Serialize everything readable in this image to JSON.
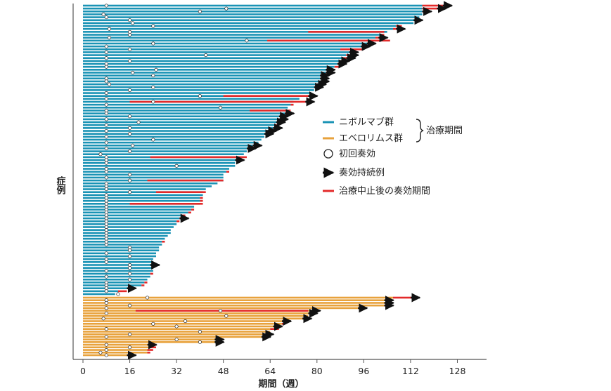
{
  "chart_data": {
    "type": "bar",
    "orientation": "horizontal",
    "description_style": "swimmer",
    "xlabel": "期間（週）",
    "ylabel": "症例",
    "xlim": [
      0,
      136
    ],
    "xticks": [
      0,
      16,
      32,
      48,
      64,
      80,
      96,
      112,
      128
    ],
    "grid": false,
    "legend_position": "right",
    "colors": {
      "nivolumab": "#1a93b5",
      "everolimus": "#e8a23c",
      "post_treatment": "#e32a2a",
      "ongoing_arrow": "#111111"
    },
    "legend": {
      "nivolumab": "ニボルマブ群",
      "everolimus": "エベロリムス群",
      "treatment_period": "治療期間",
      "first_response": "初回奏効",
      "ongoing": "奏効持続例",
      "post_treatment": "治療中止後の奏効期間"
    },
    "series": [
      {
        "name": "ニボルマブ群",
        "treatment_end": [
          116,
          116,
          116,
          116,
          115,
          114,
          113,
          107,
          106,
          104,
          102,
          100,
          100,
          98,
          96,
          94,
          92,
          90,
          89,
          88,
          87,
          86,
          84,
          83,
          82,
          82,
          82,
          81,
          80,
          79,
          78,
          76,
          74,
          72,
          71,
          70,
          70,
          69,
          68,
          68,
          67,
          66,
          65,
          64,
          63,
          62,
          61,
          60,
          58,
          57,
          56,
          55,
          54,
          53,
          52,
          52,
          50,
          49,
          48,
          48,
          48,
          46,
          44,
          42,
          41,
          41,
          40,
          40,
          40,
          38,
          37,
          36,
          34,
          33,
          32,
          32,
          31,
          30,
          30,
          29,
          28,
          27,
          27,
          26,
          26,
          25,
          25,
          24,
          24,
          24,
          24,
          24,
          23,
          23,
          22,
          21,
          20,
          16,
          12,
          11
        ],
        "response_end": [
          124,
          122,
          117,
          116,
          115,
          114,
          113,
          109,
          108,
          103,
          103,
          102,
          105,
          98,
          96,
          96,
          92,
          92,
          91,
          89,
          88,
          88,
          84,
          84,
          82,
          82,
          82,
          81,
          80,
          79,
          78,
          78,
          74,
          77,
          72,
          70,
          71,
          70,
          68,
          68,
          67,
          67,
          66,
          64,
          63,
          62,
          61,
          60,
          59,
          57,
          56,
          55,
          56,
          52,
          52,
          52,
          50,
          50,
          48,
          48,
          48,
          46,
          44,
          42,
          42,
          41,
          41,
          41,
          41,
          38,
          38,
          37,
          35,
          34,
          33,
          32,
          31,
          30,
          30,
          29,
          28,
          28,
          27,
          26,
          26,
          25,
          25,
          24,
          24,
          24,
          24,
          24,
          24,
          23,
          22,
          22,
          21,
          16,
          15,
          11
        ],
        "response_start": [
          116,
          116,
          116,
          116,
          115,
          114,
          113,
          107,
          106,
          77,
          102,
          100,
          63,
          98,
          96,
          88,
          92,
          90,
          89,
          88,
          87,
          86,
          84,
          83,
          82,
          82,
          82,
          81,
          80,
          79,
          78,
          48,
          74,
          16,
          71,
          70,
          57,
          69,
          68,
          68,
          67,
          66,
          65,
          64,
          63,
          62,
          61,
          60,
          58,
          57,
          56,
          55,
          23,
          53,
          52,
          52,
          50,
          49,
          48,
          48,
          22,
          46,
          44,
          42,
          25,
          41,
          40,
          40,
          16,
          38,
          37,
          36,
          34,
          33,
          32,
          32,
          31,
          30,
          30,
          29,
          28,
          27,
          27,
          26,
          26,
          25,
          25,
          24,
          24,
          24,
          24,
          24,
          23,
          23,
          22,
          21,
          20,
          16,
          12,
          11
        ],
        "ongoing": [
          1,
          1,
          1,
          0,
          0,
          1,
          0,
          0,
          1,
          0,
          0,
          1,
          0,
          1,
          1,
          0,
          1,
          1,
          1,
          1,
          1,
          0,
          1,
          1,
          1,
          1,
          1,
          1,
          1,
          0,
          0,
          1,
          0,
          1,
          0,
          0,
          0,
          1,
          1,
          1,
          1,
          0,
          1,
          1,
          1,
          0,
          0,
          0,
          1,
          1,
          0,
          0,
          0,
          1,
          0,
          0,
          0,
          0,
          0,
          0,
          0,
          0,
          0,
          0,
          0,
          0,
          0,
          0,
          0,
          0,
          0,
          0,
          0,
          1,
          0,
          0,
          0,
          0,
          0,
          0,
          0,
          0,
          0,
          0,
          0,
          0,
          0,
          0,
          0,
          1,
          0,
          0,
          0,
          0,
          0,
          0,
          0,
          1,
          0,
          0
        ],
        "first_response": [
          8,
          49,
          40,
          7,
          8,
          16,
          17,
          24,
          9,
          16,
          16,
          9,
          56,
          24,
          8,
          16,
          8,
          42,
          8,
          16,
          8,
          8,
          25,
          17,
          24,
          8,
          8,
          9,
          24,
          16,
          8,
          40,
          8,
          24,
          8,
          47,
          8,
          8,
          16,
          8,
          19,
          8,
          16,
          8,
          16,
          8,
          24,
          8,
          17,
          8,
          16,
          6,
          8,
          8,
          8,
          32,
          8,
          8,
          16,
          8,
          16,
          8,
          8,
          8,
          16,
          8,
          8,
          8,
          8,
          8,
          8,
          8,
          8,
          8,
          8,
          8,
          8,
          8,
          8,
          8,
          8,
          8,
          8,
          16,
          16,
          8,
          16,
          8,
          8,
          16,
          16,
          8,
          16,
          8,
          16,
          8,
          8,
          8,
          8,
          12
        ]
      },
      {
        "name": "エベロリムス群",
        "treatment_end": [
          106,
          104,
          104,
          103,
          95,
          79,
          78,
          77,
          76,
          69,
          68,
          66,
          64,
          64,
          63,
          62,
          46,
          46,
          23,
          23,
          22,
          22,
          16
        ],
        "response_end": [
          113,
          103,
          104,
          104,
          95,
          77,
          77,
          77,
          76,
          68,
          69,
          66,
          67,
          64,
          61,
          61,
          44,
          39,
          23,
          25,
          24,
          23,
          16
        ],
        "response_start": [
          106,
          104,
          104,
          103,
          95,
          18,
          78,
          77,
          76,
          69,
          68,
          66,
          64,
          64,
          63,
          62,
          46,
          46,
          23,
          23,
          22,
          22,
          16
        ],
        "ongoing": [
          1,
          1,
          1,
          1,
          1,
          1,
          1,
          0,
          1,
          1,
          0,
          1,
          0,
          0,
          1,
          1,
          1,
          1,
          1,
          0,
          0,
          0,
          1
        ],
        "first_response": [
          22,
          8,
          8,
          16,
          8,
          47,
          8,
          49,
          7,
          35,
          24,
          32,
          8,
          40,
          16,
          8,
          32,
          40,
          8,
          16,
          8,
          6,
          8
        ]
      }
    ]
  }
}
